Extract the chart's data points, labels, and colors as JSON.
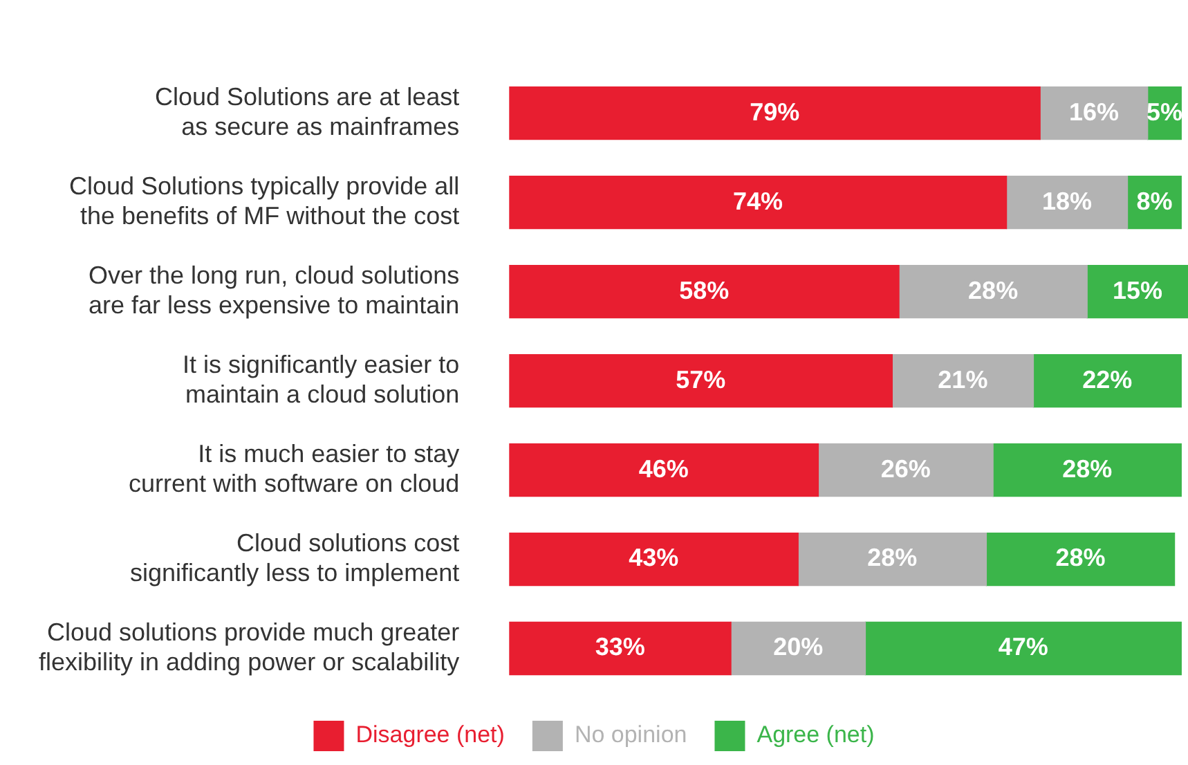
{
  "chart_data": {
    "type": "bar",
    "orientation": "horizontal",
    "stacked": true,
    "legend": "bottom",
    "grid": false,
    "categories": [
      "Cloud Solutions are at least as secure as mainframes",
      "Cloud Solutions typically provide all the benefits of MF without the cost",
      "Over the long run, cloud solutions are far less expensive to maintain",
      "It is significantly easier to maintain a cloud solution",
      "It is much easier to stay current with software on cloud",
      "Cloud solutions cost significantly less to implement",
      "Cloud solutions provide much greater flexibility in adding power or scalability"
    ],
    "series": [
      {
        "name": "Disagree (net)",
        "color": "#e81e30",
        "values": [
          79,
          74,
          58,
          57,
          46,
          43,
          33
        ],
        "value_labels": [
          "79%",
          "74%",
          "58%",
          "57%",
          "46%",
          "43%",
          "33%"
        ]
      },
      {
        "name": "No opinion",
        "color": "#b3b3b3",
        "values": [
          16,
          18,
          28,
          21,
          26,
          28,
          20
        ],
        "value_labels": [
          "16%",
          "18%",
          "28%",
          "21%",
          "26%",
          "28%",
          "20%"
        ]
      },
      {
        "name": "Agree (net)",
        "color": "#3bb54a",
        "values": [
          5,
          8,
          15,
          22,
          28,
          28,
          47
        ],
        "value_labels": [
          "5%",
          "8%",
          "15%",
          "22%",
          "28%",
          "28%",
          "47%"
        ]
      }
    ]
  }
}
